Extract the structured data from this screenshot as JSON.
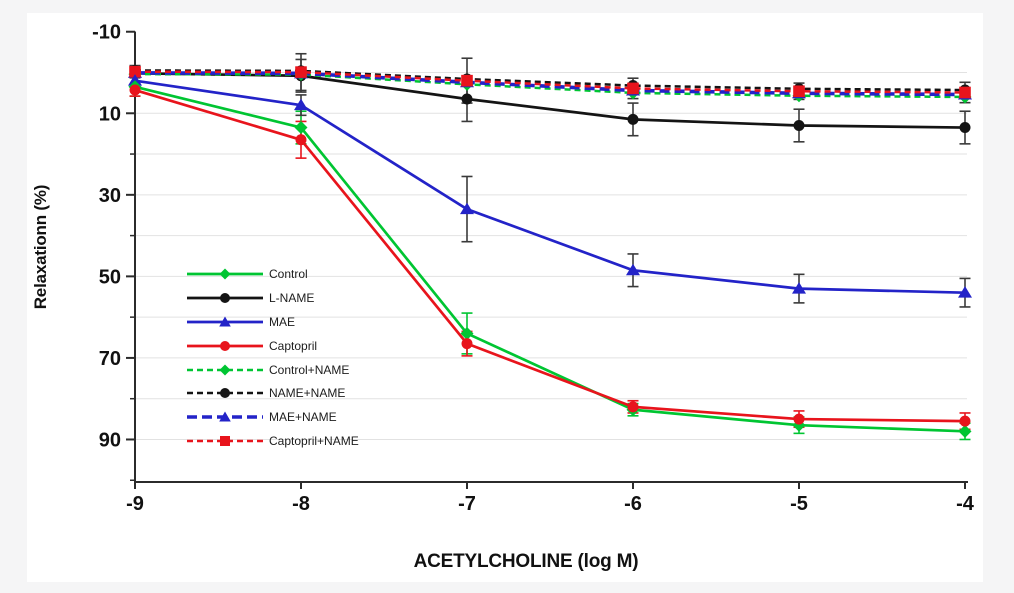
{
  "canvas": {
    "background": "#f5f5f6",
    "figure_background": "#ffffff"
  },
  "chart_data": {
    "type": "line",
    "title": "",
    "xlabel": "ACETYLCHOLINE (log M)",
    "ylabel": "Relaxationn (%)",
    "x_values": [
      -9,
      -8,
      -7,
      -6,
      -5,
      -4
    ],
    "x_tick_labels": [
      "-9",
      "-8",
      "-7",
      "-6",
      "-5",
      "-4"
    ],
    "y_axis": {
      "inverted": true,
      "top_value": -10,
      "bottom_value": 100,
      "major_ticks": [
        -10,
        10,
        30,
        50,
        70,
        90
      ],
      "minor_ticks": [
        0,
        20,
        40,
        60,
        80,
        100
      ],
      "gridlines": [
        0,
        10,
        20,
        30,
        40,
        50,
        60,
        70,
        80,
        90
      ]
    },
    "grid": "horizontal",
    "legend_position": "inside-left-center",
    "colors": {
      "green": "#00c532",
      "black": "#141414",
      "blue": "#2323c8",
      "red": "#e8141c",
      "grid": "#e2e2e2",
      "axis": "#2b2b2b",
      "error": "#3a3a3a",
      "tick_label": "#111111"
    },
    "series": [
      {
        "name": "Control",
        "color_key": "green",
        "style": "solid",
        "marker": "diamond",
        "values": [
          3.5,
          13.5,
          64,
          82.7,
          86.5,
          88
        ],
        "errors": [
          2.3,
          4,
          5,
          1.5,
          2,
          2
        ],
        "error_color_key": "green"
      },
      {
        "name": "L-NAME",
        "color_key": "black",
        "style": "solid",
        "marker": "circle",
        "values": [
          0.2,
          0.8,
          6.5,
          11.5,
          13,
          13.5
        ],
        "errors": [
          null,
          4,
          5.5,
          4,
          4,
          4
        ],
        "error_color_key": "error"
      },
      {
        "name": "MAE",
        "color_key": "blue",
        "style": "solid",
        "marker": "triangle",
        "values": [
          2,
          8,
          33.5,
          48.5,
          53,
          54
        ],
        "errors": [
          null,
          2.5,
          8,
          4,
          3.5,
          3.5
        ],
        "error_color_key": "error"
      },
      {
        "name": "Captopril",
        "color_key": "red",
        "style": "solid",
        "marker": "circle",
        "values": [
          4.3,
          16.5,
          66.5,
          82,
          85,
          85.5
        ],
        "errors": [
          1.5,
          4.5,
          3,
          1.5,
          2,
          2
        ],
        "error_color_key": "red"
      },
      {
        "name": "Control+NAME",
        "color_key": "green",
        "style": "dashed",
        "marker": "diamond",
        "values": [
          0.4,
          0.5,
          2.9,
          5,
          5.7,
          6
        ],
        "errors": [
          null,
          null,
          null,
          null,
          null,
          null
        ],
        "error_color_key": "green"
      },
      {
        "name": "NAME+NAME",
        "color_key": "black",
        "style": "dashed",
        "marker": "circle",
        "values": [
          -0.5,
          -0.4,
          1.6,
          3.2,
          4,
          4.3
        ],
        "errors": [
          null,
          null,
          null,
          null,
          null,
          null
        ],
        "error_color_key": "error"
      },
      {
        "name": "MAE+NAME",
        "color_key": "blue",
        "style": "dashed-bold",
        "marker": "triangle",
        "values": [
          0.1,
          0.2,
          2.4,
          4.4,
          5.1,
          5.4
        ],
        "errors": [
          null,
          null,
          null,
          null,
          null,
          null
        ],
        "error_color_key": "error"
      },
      {
        "name": "Captopril+NAME",
        "color_key": "red",
        "style": "dashed",
        "marker": "square",
        "values": [
          -0.2,
          -0.1,
          2,
          3.9,
          4.6,
          4.9
        ],
        "errors": [
          1.5,
          4.5,
          5.5,
          2.5,
          2,
          2.5
        ],
        "error_color_key": "error"
      }
    ]
  }
}
